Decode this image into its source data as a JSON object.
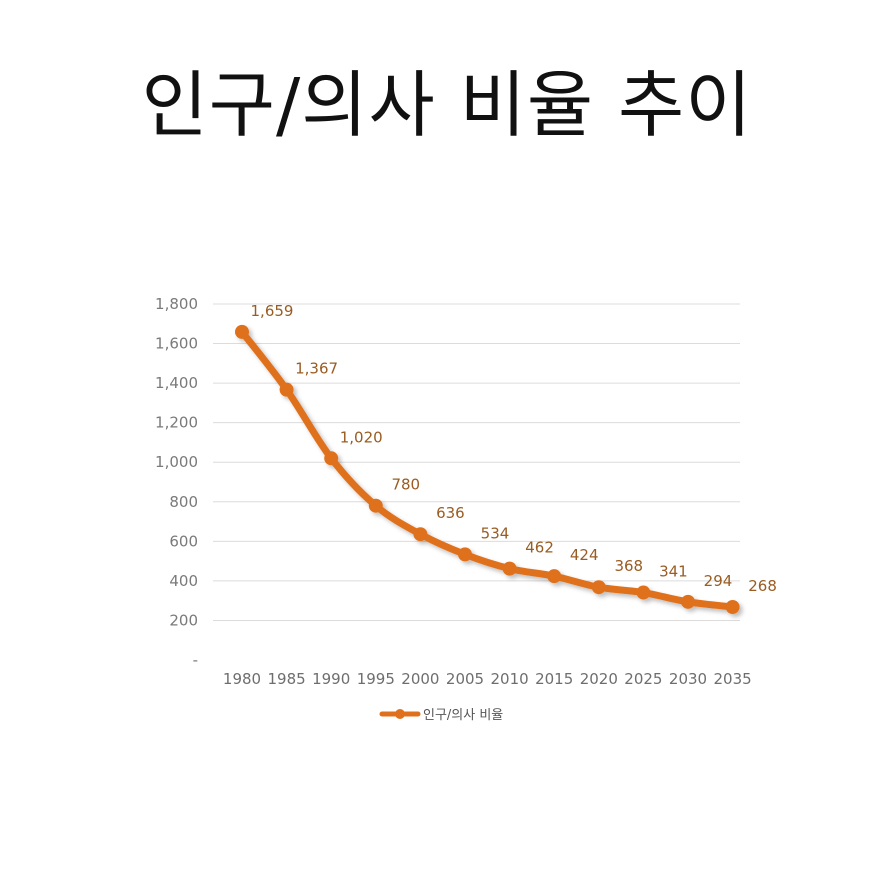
{
  "title": "인구/의사 비율 추이",
  "chart_data": {
    "type": "line",
    "title": "인구/의사 비율 추이",
    "categories": [
      "1980",
      "1985",
      "1990",
      "1995",
      "2000",
      "2005",
      "2010",
      "2015",
      "2020",
      "2025",
      "2030",
      "2035"
    ],
    "series": [
      {
        "name": "인구/의사 비율",
        "values": [
          1659,
          1367,
          1020,
          780,
          636,
          534,
          462,
          424,
          368,
          341,
          294,
          268
        ],
        "labels": [
          "1,659",
          "1,367",
          "1,020",
          "780",
          "636",
          "534",
          "462",
          "424",
          "368",
          "341",
          "294",
          "268"
        ],
        "color": "#e0711c"
      }
    ],
    "y_ticks": [
      "-",
      "200",
      "400",
      "600",
      "800",
      "1,000",
      "1,200",
      "1,400",
      "1,600",
      "1,800"
    ],
    "ylim": [
      0,
      1800
    ],
    "grid": true,
    "legend": "bottom"
  }
}
